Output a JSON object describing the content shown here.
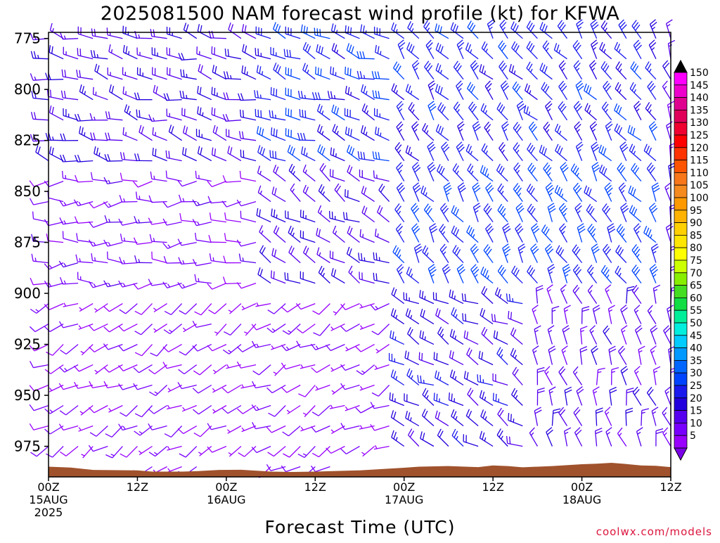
{
  "chart_data": {
    "type": "wind-barb-time-height",
    "title": "2025081500 NAM forecast wind profile (kt) for KFWA",
    "xlabel": "Forecast Time (UTC)",
    "ylabel": "",
    "x_ticks": [
      {
        "hour": 0,
        "line1": "00Z",
        "line2": "15AUG",
        "line3": "2025"
      },
      {
        "hour": 12,
        "line1": "12Z",
        "line2": "",
        "line3": ""
      },
      {
        "hour": 24,
        "line1": "00Z",
        "line2": "16AUG",
        "line3": ""
      },
      {
        "hour": 36,
        "line1": "12Z",
        "line2": "",
        "line3": ""
      },
      {
        "hour": 48,
        "line1": "00Z",
        "line2": "17AUG",
        "line3": ""
      },
      {
        "hour": 60,
        "line1": "12Z",
        "line2": "",
        "line3": ""
      },
      {
        "hour": 72,
        "line1": "00Z",
        "line2": "18AUG",
        "line3": ""
      },
      {
        "hour": 84,
        "line1": "12Z",
        "line2": "",
        "line3": ""
      }
    ],
    "xlim_hours": [
      0,
      84
    ],
    "y_ticks": [
      775,
      800,
      825,
      850,
      875,
      900,
      925,
      950,
      975
    ],
    "ylim_hpa": [
      772,
      990
    ],
    "y_unit": "hPa",
    "timestep_hours": 2,
    "level_step_hpa": 10,
    "terrain_surface_pressure": [
      [
        0,
        985
      ],
      [
        3,
        985.4
      ],
      [
        5,
        986.2
      ],
      [
        6,
        986.6
      ],
      [
        12,
        986.8
      ],
      [
        14,
        987.4
      ],
      [
        18,
        987.4
      ],
      [
        20,
        987.2
      ],
      [
        23,
        986.6
      ],
      [
        26,
        986.5
      ],
      [
        30,
        987.4
      ],
      [
        33,
        987.6
      ],
      [
        36,
        987.4
      ],
      [
        42,
        986.8
      ],
      [
        48,
        985.5
      ],
      [
        50,
        985
      ],
      [
        54,
        984.7
      ],
      [
        58,
        985.2
      ],
      [
        60,
        984.4
      ],
      [
        62,
        984.7
      ],
      [
        64,
        985.3
      ],
      [
        68,
        984.7
      ],
      [
        72,
        983.8
      ],
      [
        74,
        983.5
      ],
      [
        76,
        983.1
      ],
      [
        78,
        983.7
      ],
      [
        80,
        984.4
      ],
      [
        82,
        984.6
      ],
      [
        84,
        985.2
      ]
    ],
    "terrain_color": "#a0522d",
    "colorbar": {
      "labels": [
        "150",
        "145",
        "140",
        "135",
        "130",
        "125",
        "120",
        "115",
        "110",
        "105",
        "100",
        "95",
        "90",
        "85",
        "80",
        "75",
        "70",
        "65",
        "60",
        "55",
        "50",
        "45",
        "40",
        "35",
        "30",
        "25",
        "20",
        "15",
        "10",
        "5"
      ],
      "colors": [
        "#ff00ff",
        "#ee00cc",
        "#e0008f",
        "#e0005a",
        "#f00030",
        "#ff0000",
        "#ff3300",
        "#ff5500",
        "#f7771a",
        "#f58a1f",
        "#ff9900",
        "#ffb300",
        "#ffd000",
        "#ffe600",
        "#ffff00",
        "#ccff00",
        "#88ee00",
        "#44dd22",
        "#11dd44",
        "#00ee99",
        "#00eedd",
        "#00ccff",
        "#0099ff",
        "#0066ff",
        "#0044ff",
        "#1a1aee",
        "#2200dd",
        "#5500ee",
        "#7700ff",
        "#9900ff"
      ]
    },
    "wind_regimes": [
      {
        "h0": 0,
        "h1": 30,
        "p0": 772,
        "p1": 845,
        "dir": 285,
        "spd": 20
      },
      {
        "h0": 30,
        "h1": 48,
        "p0": 772,
        "p1": 845,
        "dir": 290,
        "spd": 28
      },
      {
        "h0": 48,
        "h1": 84,
        "p0": 772,
        "p1": 845,
        "dir": 320,
        "spd": 27
      },
      {
        "h0": 0,
        "h1": 30,
        "p0": 845,
        "p1": 900,
        "dir": 265,
        "spd": 12
      },
      {
        "h0": 30,
        "h1": 48,
        "p0": 845,
        "p1": 900,
        "dir": 300,
        "spd": 20
      },
      {
        "h0": 48,
        "h1": 84,
        "p0": 845,
        "p1": 900,
        "dir": 325,
        "spd": 30
      },
      {
        "h0": 0,
        "h1": 48,
        "p0": 900,
        "p1": 990,
        "dir": 240,
        "spd": 9
      },
      {
        "h0": 48,
        "h1": 66,
        "p0": 900,
        "p1": 990,
        "dir": 300,
        "spd": 22
      },
      {
        "h0": 66,
        "h1": 84,
        "p0": 900,
        "p1": 990,
        "dir": 345,
        "spd": 17
      }
    ],
    "grid": false,
    "legend": "right"
  },
  "watermark": "coolwx.com/models"
}
